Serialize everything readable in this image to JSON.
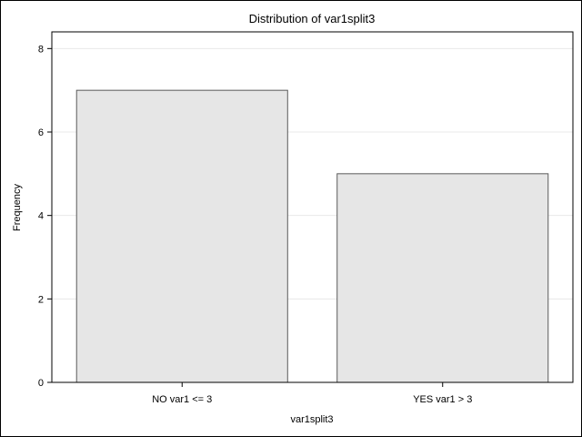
{
  "chart_data": {
    "type": "bar",
    "title": "Distribution of var1split3",
    "xlabel": "var1split3",
    "ylabel": "Frequency",
    "categories": [
      "NO var1 <= 3",
      "YES var1 > 3"
    ],
    "values": [
      7,
      5
    ],
    "ylim": [
      0,
      8.4
    ],
    "yticks": [
      0,
      2,
      4,
      6,
      8
    ],
    "grid": true,
    "legend": "none"
  },
  "colors": {
    "bar_fill": "#e6e6e6",
    "bar_stroke": "#5a5a5a",
    "gridline": "#e8e8e8"
  }
}
